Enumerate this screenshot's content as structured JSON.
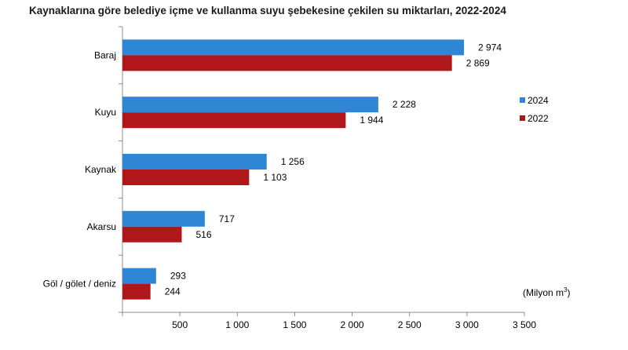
{
  "chart_data": {
    "type": "bar",
    "orientation": "horizontal",
    "title": "Kaynaklarına göre belediye içme ve kullanma suyu şebekesine çekilen su miktarları, 2022-2024",
    "unit_text": "(Milyon m",
    "unit_sup": "3",
    "unit_close": ")",
    "categories": [
      "Baraj",
      "Kuyu",
      "Kaynak",
      "Akarsu",
      "Göl / gölet / deniz"
    ],
    "series": [
      {
        "name": "2024",
        "color": "#2e86d4",
        "values": [
          2974,
          2228,
          1256,
          717,
          293
        ],
        "labels": [
          "2 974",
          "2 228",
          "1 256",
          "717",
          "293"
        ]
      },
      {
        "name": "2022",
        "color": "#b0171b",
        "values": [
          2869,
          1944,
          1103,
          516,
          244
        ],
        "labels": [
          "2 869",
          "1 944",
          "1 103",
          "516",
          "244"
        ]
      }
    ],
    "xlim": [
      0,
      3500
    ],
    "xticks": [
      0,
      500,
      1000,
      1500,
      2000,
      2500,
      3000,
      3500
    ],
    "xtick_labels": [
      "",
      "500",
      "1 000",
      "1 500",
      "2 000",
      "2 500",
      "3 000",
      "3 500"
    ],
    "grid": false,
    "legend_position": "right"
  }
}
